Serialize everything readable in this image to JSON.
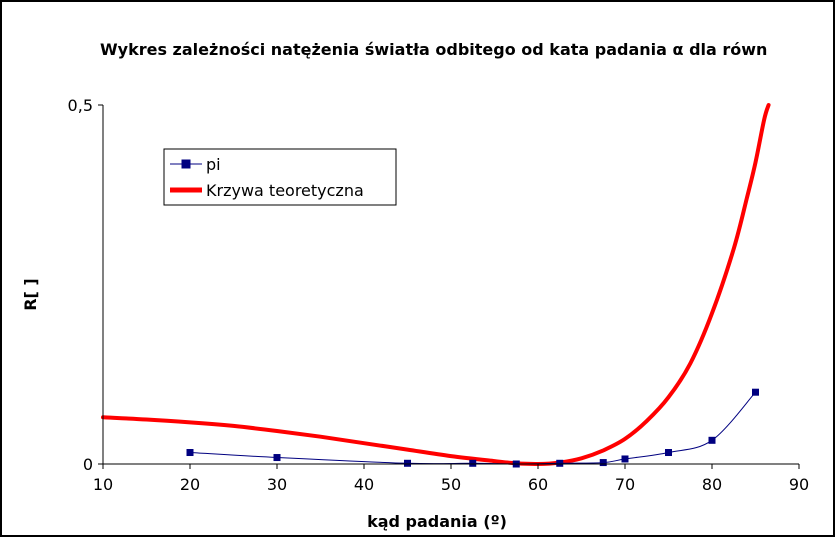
{
  "chart_data": {
    "type": "line",
    "title": "Wykres zależności natężenia światła odbitego od kata padania α dla równ",
    "xlabel": "kąd padania (º)",
    "ylabel": "R[ ]",
    "xlim": [
      10,
      90
    ],
    "ylim": [
      0,
      0.5
    ],
    "x_ticks": [
      10,
      20,
      30,
      40,
      50,
      60,
      70,
      80,
      90
    ],
    "y_ticks": [
      {
        "value": 0,
        "label": "0"
      },
      {
        "value": 0.5,
        "label": "0,5"
      }
    ],
    "grid": false,
    "legend_position": "top-left",
    "series": [
      {
        "name": "pi",
        "color": "#000080",
        "marker": "square",
        "x": [
          20,
          30,
          45,
          52.5,
          57.5,
          62.5,
          67.5,
          70,
          75,
          80,
          85
        ],
        "y": [
          0.016,
          0.009,
          0.001,
          0.001,
          0.0,
          0.001,
          0.002,
          0.007,
          0.016,
          0.033,
          0.1
        ]
      },
      {
        "name": "Krzywa teoretyczna",
        "color": "#ff0000",
        "marker": "none",
        "x": [
          10,
          15,
          20,
          25,
          30,
          35,
          40,
          45,
          50,
          55,
          57.5,
          60,
          62.5,
          65,
          67.5,
          70,
          72.5,
          75,
          77.5,
          80,
          82.5,
          84,
          85,
          86,
          86.5
        ],
        "y": [
          0.065,
          0.062,
          0.058,
          0.053,
          0.046,
          0.038,
          0.029,
          0.02,
          0.011,
          0.004,
          0.001,
          0.0,
          0.002,
          0.008,
          0.019,
          0.035,
          0.06,
          0.093,
          0.14,
          0.21,
          0.3,
          0.37,
          0.42,
          0.48,
          0.5
        ]
      }
    ]
  }
}
